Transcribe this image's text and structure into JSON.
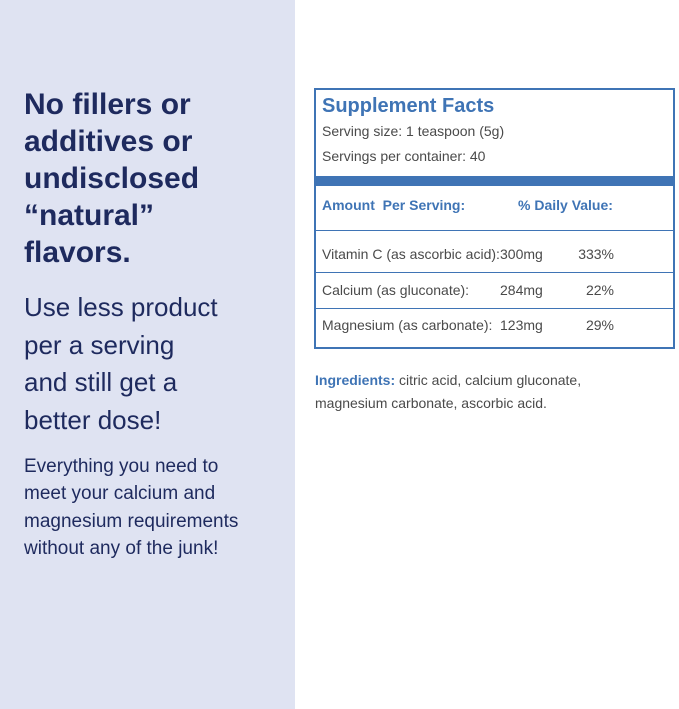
{
  "left": {
    "headline": [
      "No fillers or",
      "additives or",
      "undisclosed",
      "“natural”",
      "flavors."
    ],
    "subhead": [
      "Use less product",
      "per a serving",
      "and still get a",
      "better dose!"
    ],
    "body": [
      "Everything you need to",
      "meet your calcium and",
      "magnesium requirements",
      "without any of the junk!"
    ]
  },
  "supplement_facts": {
    "title": "Supplement Facts",
    "serving_size": "Serving size: 1 teaspoon (5g)",
    "servings_per_container": "Servings per container: 40",
    "header": {
      "amount": "Amount  Per Serving:",
      "daily_value": "% Daily Value:"
    },
    "rows": [
      [
        "Vitamin C (as ascorbic acid):",
        "300mg",
        "333%"
      ],
      [
        "Calcium (as gluconate):",
        "284mg",
        "22%"
      ],
      [
        "Magnesium (as carbonate):",
        "123mg",
        "29%"
      ]
    ]
  },
  "ingredients": {
    "label": "Ingredients:",
    "lines": [
      "citric acid, calcium gluconate,",
      "magnesium carbonate, ascorbic acid."
    ]
  }
}
